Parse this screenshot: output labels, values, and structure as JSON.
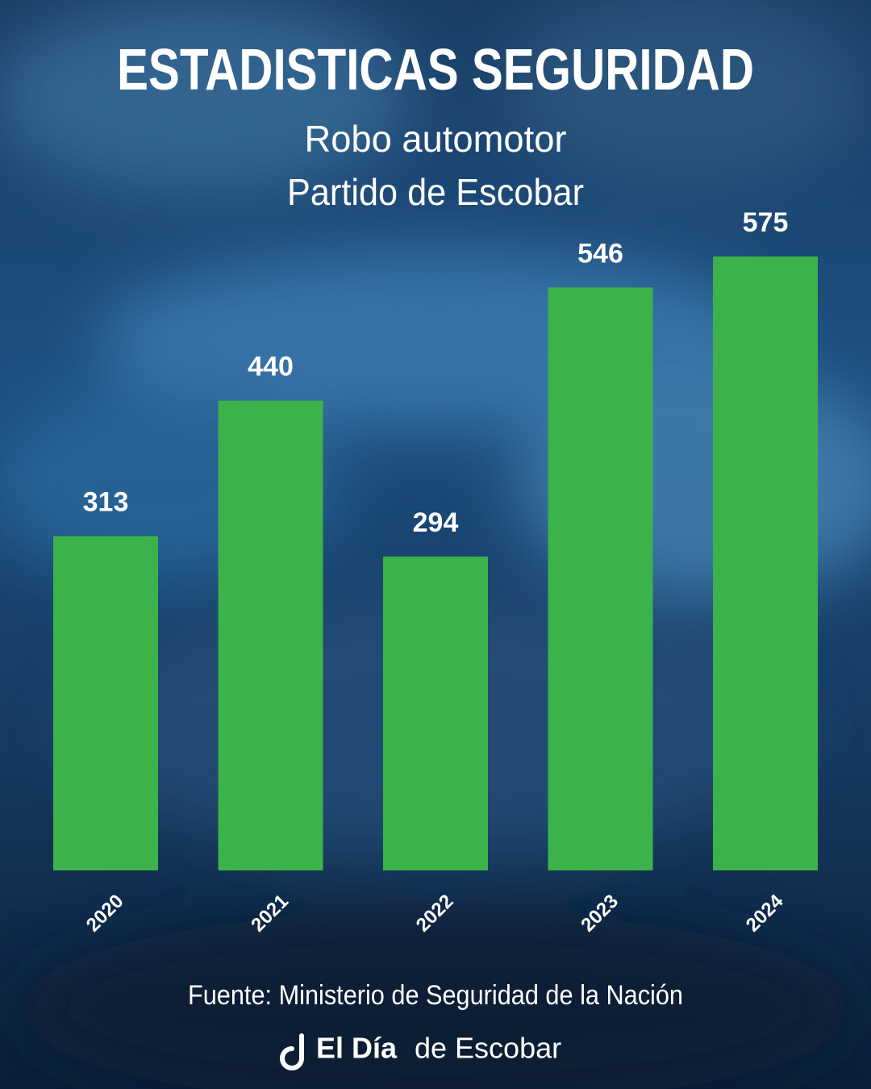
{
  "chart_data": {
    "type": "bar",
    "title": "ESTADISTICAS SEGURIDAD",
    "subtitle": [
      "Robo automotor",
      "Partido de Escobar"
    ],
    "categories": [
      "2020",
      "2021",
      "2022",
      "2023",
      "2024"
    ],
    "values": [
      313,
      440,
      294,
      546,
      575
    ],
    "color": "#3bb34a",
    "source": "Fuente: Ministerio de Seguridad de la Nación",
    "logo": {
      "bold": "El Día",
      "regular": "de Escobar"
    }
  }
}
